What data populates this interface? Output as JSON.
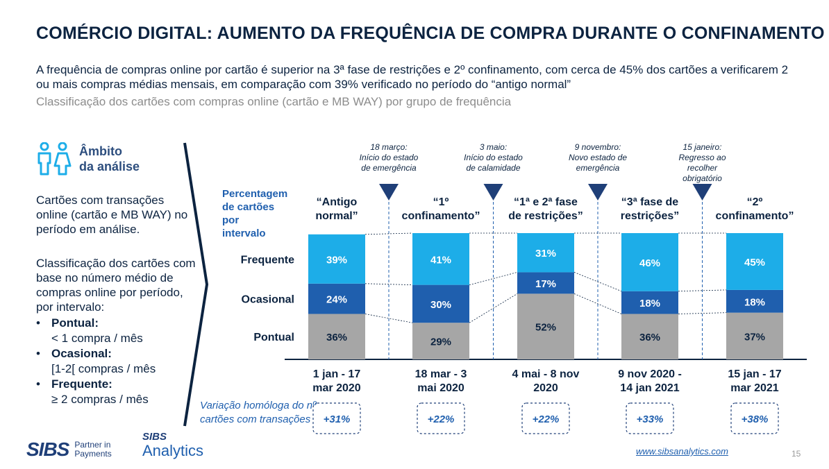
{
  "title": "COMÉRCIO DIGITAL: AUMENTO DA FREQUÊNCIA DE COMPRA DURANTE O CONFINAMENTO",
  "subtitle": "A frequência de compras online por cartão é superior na 3ª fase de restrições e 2º confinamento, com cerca de 45% dos cartões a verificarem 2 ou mais compras médias mensais, em comparação com 39% verificado no período do “antigo normal”",
  "subtitle2": "Classificação dos cartões com compras online (cartão e MB WAY) por grupo de frequência",
  "left": {
    "ambito_line1": "Âmbito",
    "ambito_line2": "da análise",
    "p1": "Cartões com transações online (cartão e MB WAY) no período em análise.",
    "p2": "Classificação dos cartões com base no número médio de compras online por período, por intervalo:",
    "bullets": [
      {
        "term": "Pontual:",
        "desc": "< 1 compra / mês"
      },
      {
        "term": "Ocasional:",
        "desc": "[1-2[ compras / mês"
      },
      {
        "term": "Frequente:",
        "desc": "≥ 2 compras / mês"
      }
    ]
  },
  "chart_data": {
    "type": "bar",
    "stacked": true,
    "ylabel": "Percentagem de cartões por intervalo",
    "categories": [
      "1 jan - 17 mar 2020",
      "18 mar - 3 mai 2020",
      "4 mai - 8 nov 2020",
      "9 nov 2020 - 14 jan 2021",
      "15 jan - 17 mar 2021"
    ],
    "period_labels": [
      "“Antigo normal”",
      "“1º confinamento”",
      "“1ª e 2ª fase de restrições”",
      "“3ª fase de restrições”",
      "“2º confinamento”"
    ],
    "series": [
      {
        "name": "Pontual",
        "values": [
          36,
          29,
          52,
          36,
          37
        ],
        "color": "#a6a6a6"
      },
      {
        "name": "Ocasional",
        "values": [
          24,
          30,
          17,
          18,
          18
        ],
        "color": "#1f5fae"
      },
      {
        "name": "Frequente",
        "values": [
          39,
          41,
          31,
          46,
          45
        ],
        "color": "#1dade8"
      }
    ],
    "value_labels": [
      [
        "36%",
        "24%",
        "39%"
      ],
      [
        "29%",
        "30%",
        "41%"
      ],
      [
        "52%",
        "17%",
        "31%"
      ],
      [
        "36%",
        "18%",
        "46%"
      ],
      [
        "37%",
        "18%",
        "45%"
      ]
    ],
    "events": [
      "18 março: Início do estado de emergência",
      "3 maio: Início do estado de calamidade",
      "9 novembro: Novo estado de emergência",
      "15 janeiro: Regresso ao recolher obrigatório"
    ],
    "yoy_label": "Variação homóloga do nº cartões com transações",
    "yoy": [
      "+31%",
      "+22%",
      "+22%",
      "+33%",
      "+38%"
    ]
  },
  "footer": {
    "link": "www.sibsanalytics.com",
    "page": "15",
    "logo_sibs": "SIBS",
    "logo_tag": "Partner in Payments",
    "logo2_top": "SIBS",
    "logo2_bottom": "Analytics"
  },
  "colors": {
    "navy": "#0c2340",
    "frequente": "#1dade8",
    "ocasional": "#1f5fae",
    "pontual": "#a6a6a6",
    "icon": "#1dade8"
  }
}
